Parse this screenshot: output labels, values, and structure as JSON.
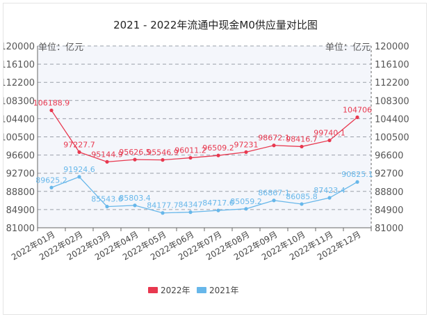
{
  "chart_data": {
    "type": "line",
    "title": "2021 - 2022年流通中现金M0供应量对比图",
    "unit_left": "单位：亿元",
    "unit_right": "单位：亿元",
    "xlabel": "",
    "ylabel": "",
    "categories": [
      "2022年01月",
      "2022年02月",
      "2022年03月",
      "2022年04月",
      "2022年05月",
      "2022年06月",
      "2022年07月",
      "2022年08月",
      "2022年09月",
      "2022年10月",
      "2022年11月",
      "2022年12月"
    ],
    "y_ticks": [
      81000,
      84900,
      88800,
      92700,
      96600,
      100500,
      104400,
      108300,
      112200,
      116100,
      120000
    ],
    "ylim": [
      81000,
      120000
    ],
    "series": [
      {
        "name": "2022年",
        "color": "#e8384f",
        "values": [
          106188.9,
          97227.7,
          95144.9,
          95626.5,
          95546.9,
          96011.2,
          96509.2,
          97231,
          98672.1,
          98416.7,
          99740.1,
          104706
        ],
        "labels": [
          "106188.9",
          "97227.7",
          "95144.9",
          "95626.5",
          "95546.9",
          "96011.2",
          "96509.2",
          "97231",
          "98672.1",
          "98416.7",
          "99740.1",
          "104706"
        ]
      },
      {
        "name": "2021年",
        "color": "#67b7ea",
        "values": [
          89625.2,
          91924.6,
          85543.6,
          85803.4,
          84177.7,
          84347,
          84717.6,
          85059.2,
          86867.1,
          86085.8,
          87423.4,
          90825.1
        ],
        "labels": [
          "89625.2",
          "91924.6",
          "85543.6",
          "85803.4",
          "84177.7",
          "84347",
          "84717.6",
          "85059.2",
          "86867.1",
          "86085.8",
          "87423.4",
          "90825.1"
        ]
      }
    ],
    "legend": [
      "2022年",
      "2021年"
    ],
    "legend_position": "bottom-center",
    "grid": true
  }
}
